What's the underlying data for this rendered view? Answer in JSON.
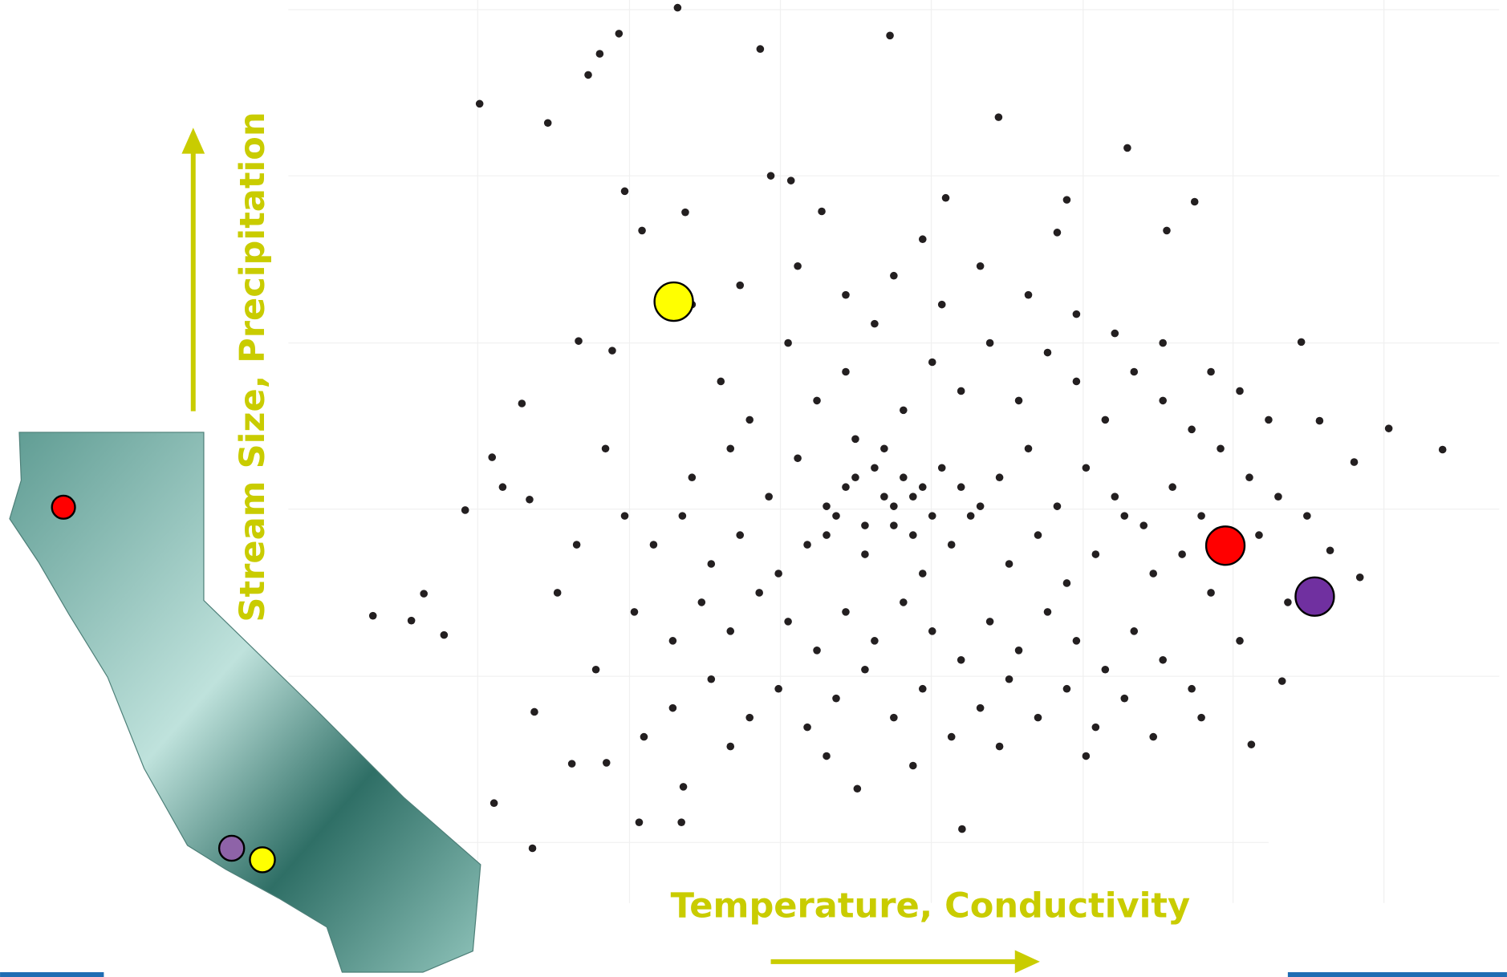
{
  "chart_data": {
    "type": "scatter",
    "x_label": "Temperature, Conductivity",
    "y_label": "Stream Size, Precipitation",
    "xlim": [
      0,
      126.8
    ],
    "ylim": [
      0,
      101.7
    ],
    "series": [
      {
        "color": "#231f20",
        "x": [
          40.5,
          49.1,
          62.6,
          34.4,
          32.4,
          31.2,
          19.9,
          27.0,
          73.9,
          87.3,
          35.0,
          50.2,
          52.3,
          94.3,
          91.4,
          36.8,
          41.3,
          55.5,
          68.4,
          81.0,
          66.0,
          80.0,
          30.2,
          33.7,
          24.3,
          21.2,
          18.4,
          22.3,
          25.1,
          8.8,
          12.8,
          16.2,
          14.1,
          25.6,
          21.4,
          25.4,
          29.5,
          33.1,
          36.5,
          40.9,
          41.1,
          59.2,
          70.1,
          120.1,
          114.5,
          110.9,
          111.5,
          105.4,
          107.3,
          100.2,
          103.4,
          108.4,
          45,
          48,
          52,
          55,
          58,
          61,
          64,
          67,
          70,
          73,
          76,
          79,
          82,
          85,
          88,
          91,
          94,
          97,
          100,
          103,
          42,
          46,
          50,
          53,
          56,
          59,
          62,
          65,
          68,
          71,
          74,
          77,
          80,
          83,
          86,
          89,
          92,
          95,
          98,
          101,
          38,
          41,
          44,
          47,
          51,
          54,
          57,
          60,
          63,
          66,
          69,
          72,
          75,
          78,
          81,
          84,
          87,
          90,
          93,
          96,
          36,
          40,
          43,
          46,
          49,
          52,
          55,
          58,
          61,
          64,
          67,
          70,
          73,
          76,
          79,
          82,
          85,
          88,
          91,
          94,
          40,
          44,
          48,
          51,
          54,
          57,
          60,
          63,
          66,
          69,
          72,
          75,
          78,
          81,
          84,
          87,
          90,
          42,
          47,
          53,
          58,
          63,
          68,
          72,
          77,
          82,
          86,
          91,
          96,
          33,
          35,
          30,
          28,
          32,
          37,
          46,
          56,
          65,
          74,
          83,
          95,
          99,
          104,
          106,
          102,
          99,
          62,
          64,
          63,
          66,
          60,
          61,
          58,
          67,
          65,
          59,
          70,
          56
        ],
        "values": [
          100.9,
          96.6,
          98.0,
          98.2,
          96.1,
          93.9,
          90.9,
          88.9,
          89.5,
          86.3,
          81.8,
          83.4,
          82.9,
          80.7,
          77.7,
          77.7,
          79.6,
          79.7,
          81.1,
          80.9,
          76.8,
          77.5,
          66.2,
          65.2,
          59.7,
          54.1,
          48.6,
          51.0,
          49.7,
          37.6,
          37.1,
          35.6,
          39.9,
          27.6,
          18.1,
          13.4,
          22.2,
          22.3,
          16.1,
          16.1,
          19.8,
          19.6,
          15.4,
          54.9,
          57.1,
          53.6,
          41.6,
          66.1,
          57.9,
          24.2,
          30.8,
          44.4,
          62,
          58,
          66,
          60,
          63,
          68,
          59,
          64,
          61,
          66,
          60,
          65,
          62,
          58,
          63,
          60,
          57,
          55,
          52,
          50,
          52,
          55,
          50,
          54,
          49,
          52,
          55,
          50,
          53,
          48,
          52,
          55,
          49,
          53,
          50,
          47,
          51,
          48,
          45,
          46,
          45,
          48,
          43,
          46,
          42,
          45,
          48,
          44,
          47,
          42,
          45,
          49,
          43,
          46,
          41,
          44,
          48,
          42,
          44,
          40,
          38,
          35,
          39,
          36,
          40,
          37,
          34,
          38,
          35,
          39,
          36,
          33,
          37,
          34,
          38,
          35,
          32,
          36,
          33,
          30,
          28,
          31,
          27,
          30,
          26,
          29,
          32,
          27,
          30,
          25,
          28,
          31,
          27,
          30,
          26,
          29,
          25,
          70,
          72,
          74,
          71,
          73,
          70,
          74,
          71,
          69,
          67,
          66,
          63,
          55,
          48,
          45,
          40,
          32,
          25,
          24,
          23,
          22,
          24,
          23,
          27,
          35,
          39,
          48,
          58,
          61,
          50,
          52,
          49,
          51,
          47,
          53,
          51,
          48,
          46,
          56,
          51,
          46
        ]
      },
      {
        "color": "#ffff00",
        "x": [
          40.1
        ],
        "values": [
          70.3
        ]
      },
      {
        "color": "#ff0000",
        "x": [
          97.5
        ],
        "values": [
          44.9
        ]
      },
      {
        "color": "#7030a0",
        "x": [
          106.8
        ],
        "values": [
          39.6
        ]
      }
    ]
  }
}
